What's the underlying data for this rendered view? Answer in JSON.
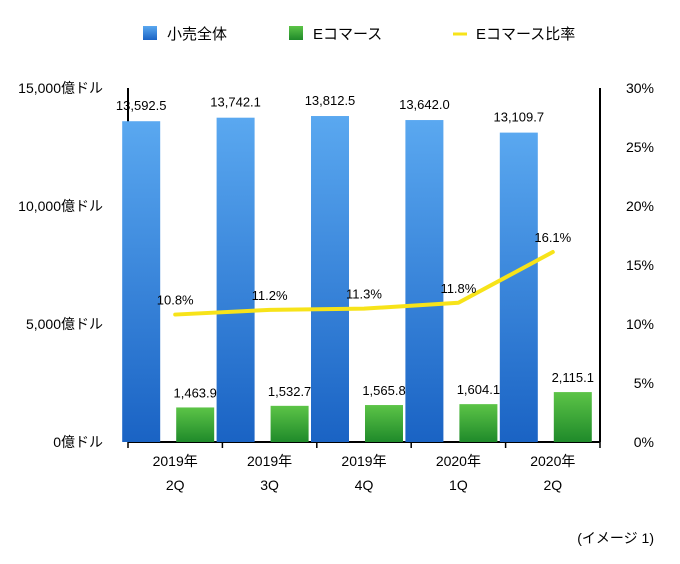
{
  "chart_data": {
    "type": "bar",
    "categories": [
      [
        "2019年",
        "2Q"
      ],
      [
        "2019年",
        "3Q"
      ],
      [
        "2019年",
        "4Q"
      ],
      [
        "2020年",
        "1Q"
      ],
      [
        "2020年",
        "2Q"
      ]
    ],
    "series": [
      {
        "name": "小売全体",
        "type": "bar",
        "axis": "left",
        "color": "#2e86d9",
        "values": [
          13592.5,
          13742.1,
          13812.5,
          13642.0,
          13109.7
        ],
        "labels": [
          "13,592.5",
          "13,742.1",
          "13,812.5",
          "13,642.0",
          "13,109.7"
        ]
      },
      {
        "name": "Eコマース",
        "type": "bar",
        "axis": "left",
        "color": "#3aa336",
        "values": [
          1463.9,
          1532.7,
          1565.8,
          1604.1,
          2115.1
        ],
        "labels": [
          "1,463.9",
          "1,532.7",
          "1,565.8",
          "1,604.1",
          "2,115.1"
        ]
      },
      {
        "name": "Eコマース比率",
        "type": "line",
        "axis": "right",
        "color": "#f7e319",
        "values": [
          10.8,
          11.2,
          11.3,
          11.8,
          16.1
        ],
        "labels": [
          "10.8%",
          "11.2%",
          "11.3%",
          "11.8%",
          "16.1%"
        ]
      }
    ],
    "y_left": {
      "ylim": [
        0,
        15000
      ],
      "ticks": [
        0,
        5000,
        10000,
        15000
      ],
      "tick_labels": [
        "0億ドル",
        "5,000億ドル",
        "10,000億ドル",
        "15,000億ドル"
      ]
    },
    "y_right": {
      "ylim": [
        0,
        30
      ],
      "ticks": [
        0,
        5,
        10,
        15,
        20,
        25,
        30
      ],
      "tick_labels": [
        "0%",
        "5%",
        "10%",
        "15%",
        "20%",
        "25%",
        "30%"
      ]
    },
    "legend_position": "top",
    "grid": false
  },
  "caption": "(イメージ 1)"
}
